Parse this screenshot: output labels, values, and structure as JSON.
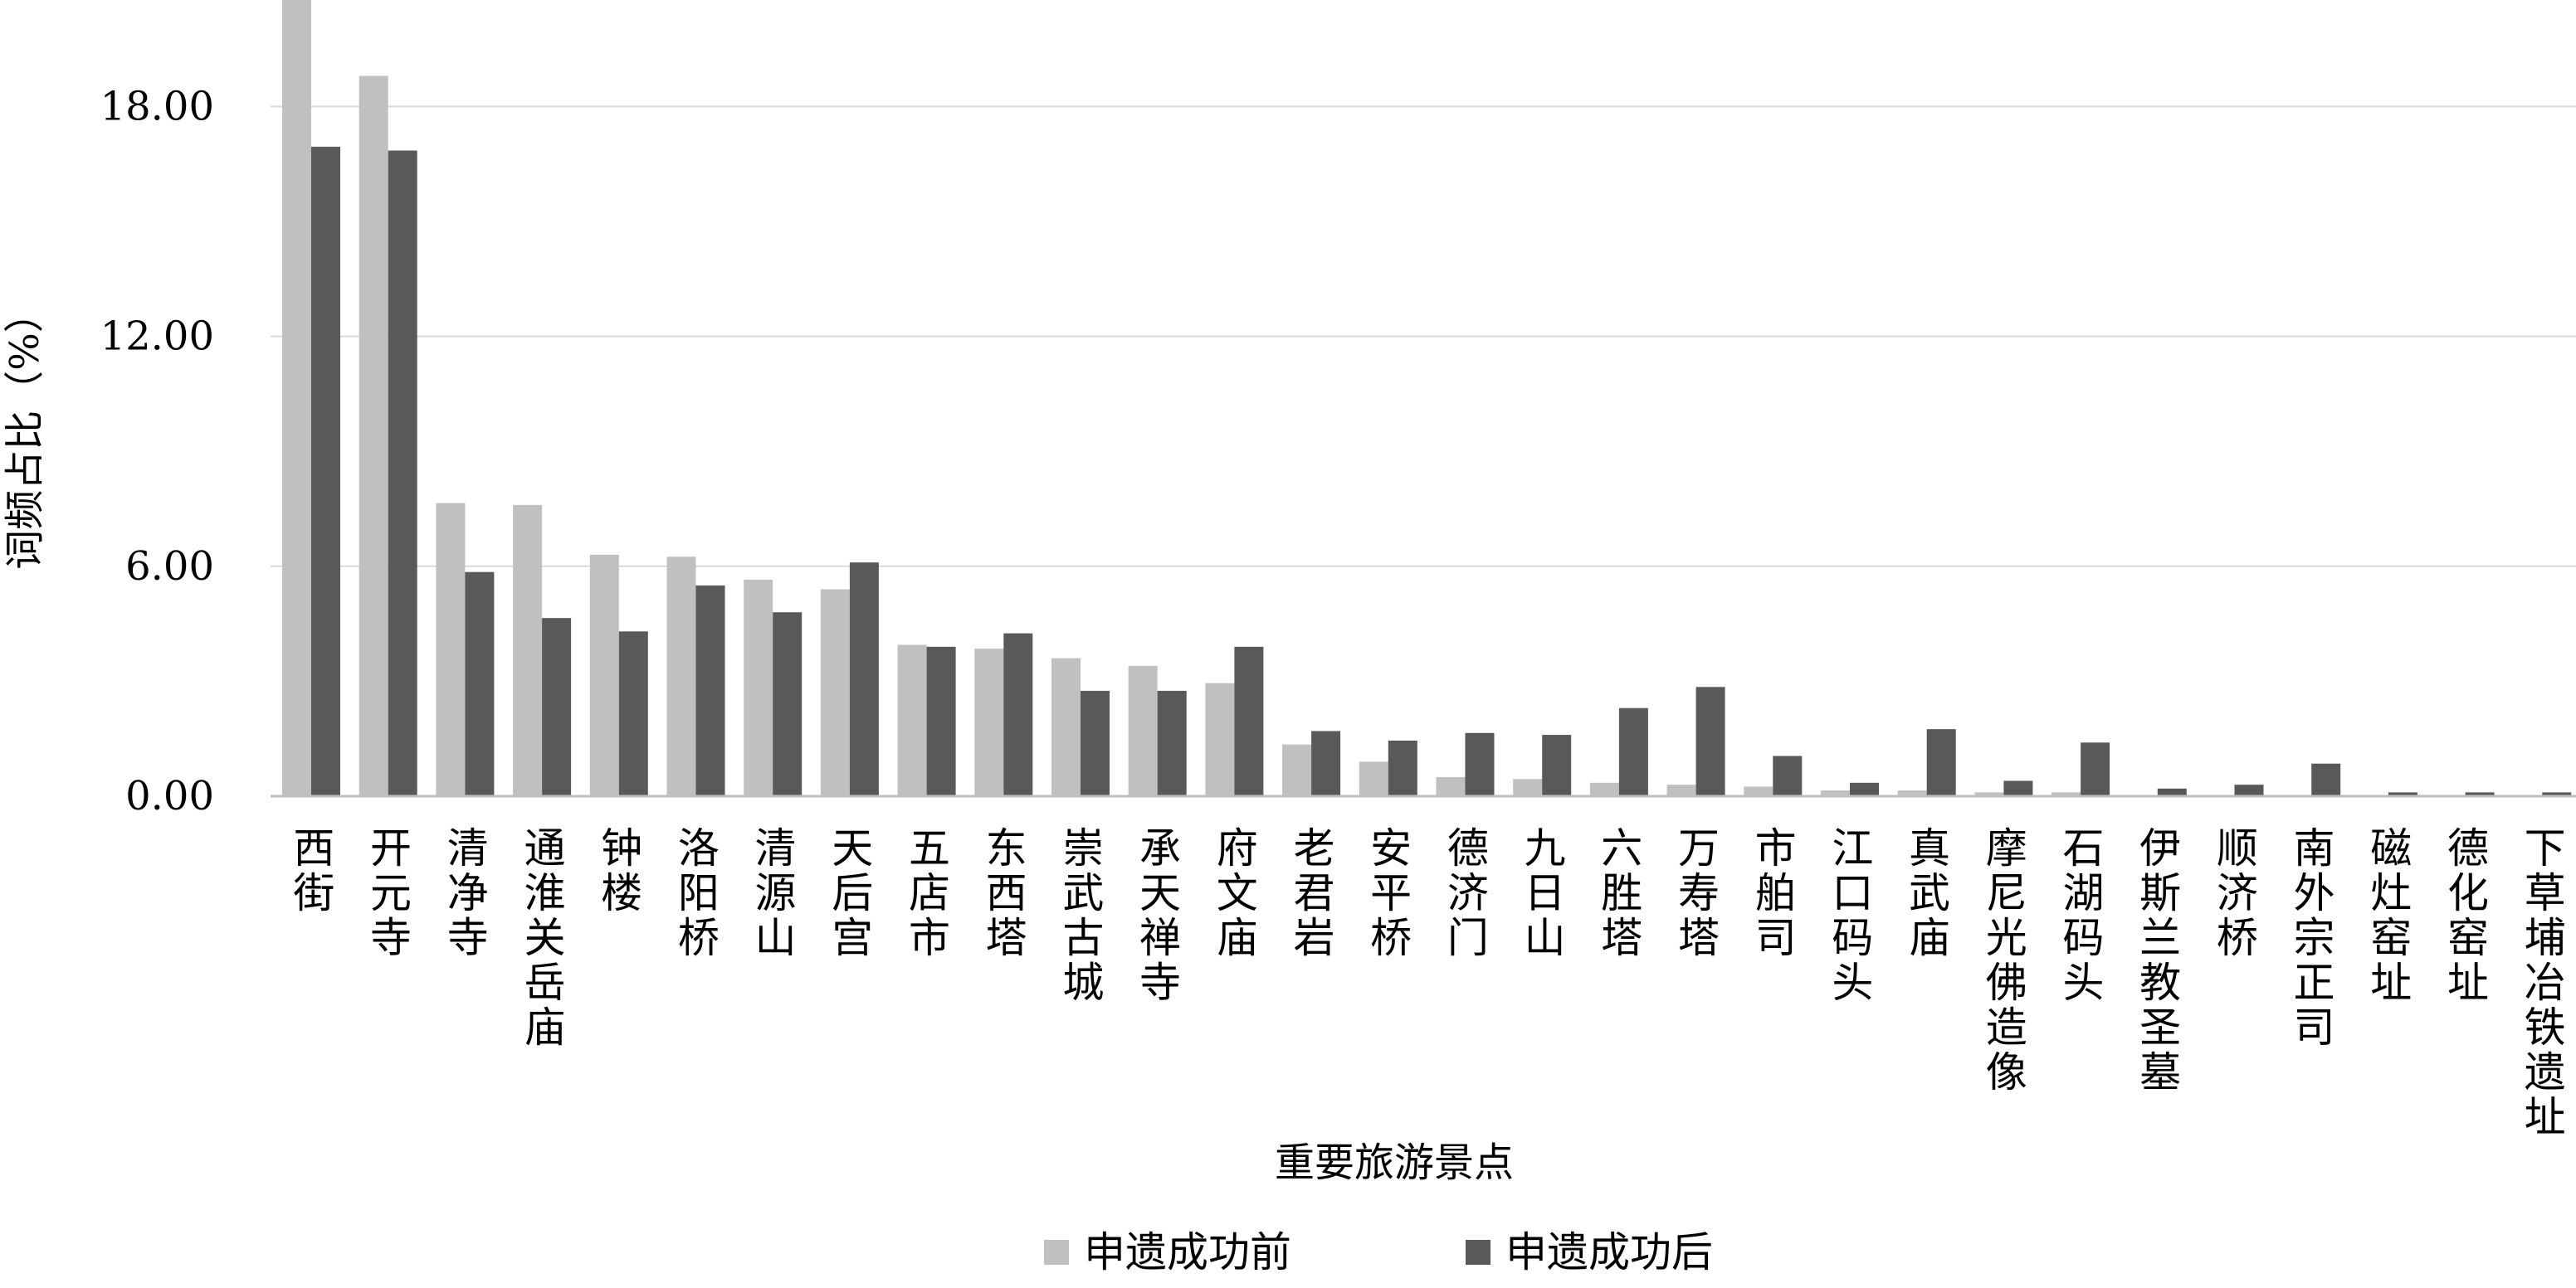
{
  "chart_data": {
    "type": "bar",
    "ylabel": "词频占比（%）",
    "xlabel": "重要旅游景点",
    "ylim": [
      0,
      20
    ],
    "yticks": [
      "0.00",
      "6.00",
      "12.00",
      "18.00"
    ],
    "ytick_values": [
      0,
      6,
      12,
      18
    ],
    "grid": true,
    "legend_position": "bottom",
    "categories": [
      "西街",
      "开元寺",
      "清净寺",
      "通淮关岳庙",
      "钟楼",
      "洛阳桥",
      "清源山",
      "天后宫",
      "五店市",
      "东西塔",
      "崇武古城",
      "承天禅寺",
      "府文庙",
      "老君岩",
      "安平桥",
      "德济门",
      "九日山",
      "六胜塔",
      "万寿塔",
      "市舶司",
      "江口码头",
      "真武庙",
      "摩尼光佛造像",
      "石湖码头",
      "伊斯兰教圣墓",
      "顺济桥",
      "南外宗正司",
      "磁灶窑址",
      "德化窑址",
      "下草埔冶铁遗址"
    ],
    "series": [
      {
        "name": "申遗成功前",
        "color": "#c0c0c0",
        "values": [
          20.9,
          18.8,
          7.65,
          7.6,
          6.3,
          6.25,
          5.65,
          5.4,
          3.95,
          3.85,
          3.6,
          3.4,
          2.95,
          1.35,
          0.9,
          0.5,
          0.45,
          0.35,
          0.3,
          0.25,
          0.15,
          0.15,
          0.1,
          0.1,
          0.0,
          0.0,
          0.0,
          0.0,
          0.0,
          0.0
        ]
      },
      {
        "name": "申遗成功后",
        "color": "#595959",
        "values": [
          16.95,
          16.85,
          5.85,
          4.65,
          4.3,
          5.5,
          4.8,
          6.1,
          3.9,
          4.25,
          2.75,
          2.75,
          3.9,
          1.7,
          1.45,
          1.65,
          1.6,
          2.3,
          2.85,
          1.05,
          0.35,
          1.75,
          0.4,
          1.4,
          0.2,
          0.3,
          0.85,
          0.1,
          0.1,
          0.1
        ]
      }
    ]
  }
}
